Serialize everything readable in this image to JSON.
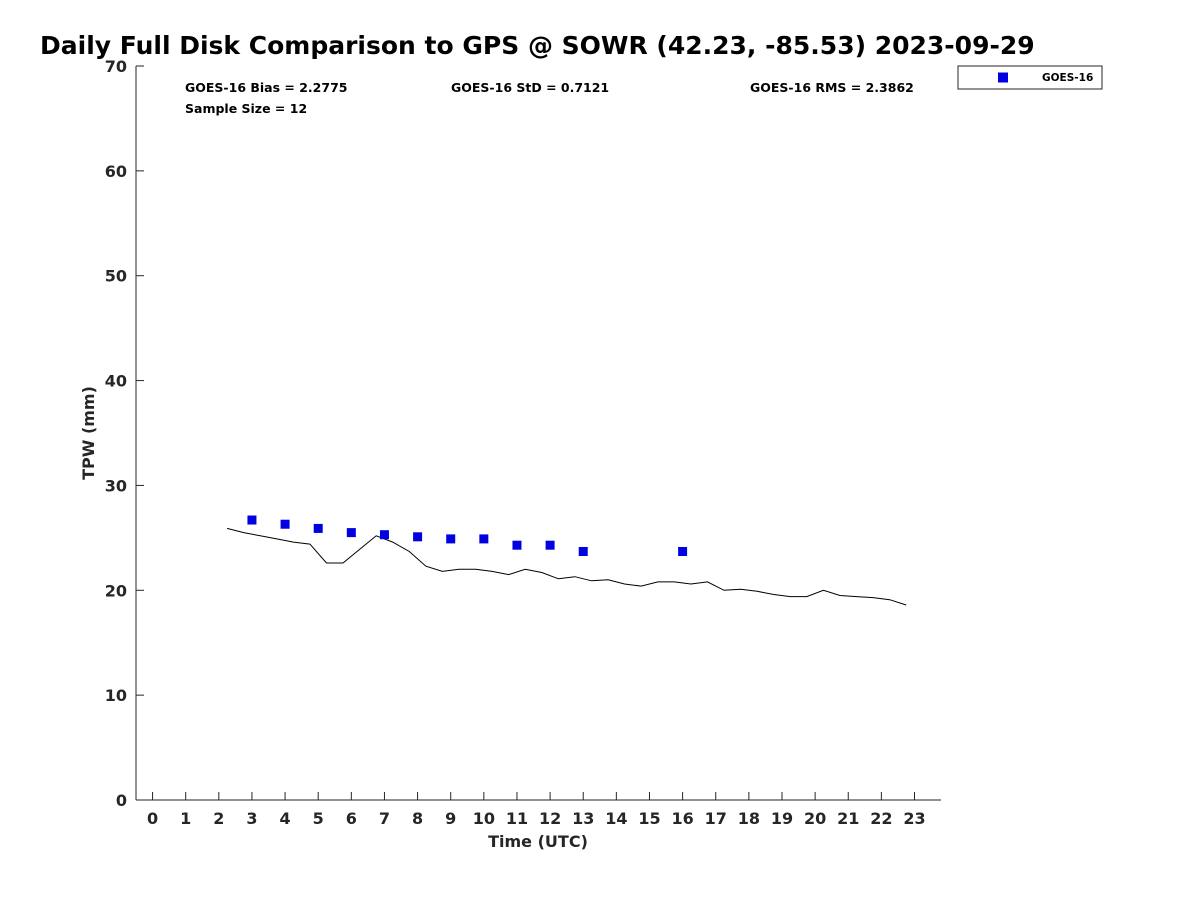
{
  "chart_data": {
    "type": "scatter",
    "title": "Daily Full Disk Comparison to GPS @ SOWR (42.23, -85.53) 2023-09-29",
    "xlabel": "Time (UTC)",
    "ylabel": "TPW (mm)",
    "xlim": [
      -0.5,
      23.8
    ],
    "ylim": [
      0,
      70
    ],
    "x_ticks": [
      "0",
      "1",
      "2",
      "3",
      "4",
      "5",
      "6",
      "7",
      "8",
      "9",
      "10",
      "11",
      "12",
      "13",
      "14",
      "15",
      "16",
      "17",
      "18",
      "19",
      "20",
      "21",
      "22",
      "23"
    ],
    "y_ticks": [
      "0",
      "10",
      "20",
      "30",
      "40",
      "50",
      "60",
      "70"
    ],
    "grid": false,
    "legend_position": "top-right",
    "stats": {
      "bias": "GOES-16 Bias = 2.2775",
      "std": "GOES-16 StD = 0.7121",
      "rms": "GOES-16 RMS = 2.3862",
      "sample_size": "Sample Size = 12"
    },
    "series": [
      {
        "name": "GOES-16",
        "kind": "scatter",
        "marker": "square",
        "color": "#0000e0",
        "x": [
          3,
          4,
          5,
          6,
          7,
          8,
          9,
          10,
          11,
          12,
          13,
          16
        ],
        "y": [
          26.7,
          26.3,
          25.9,
          25.5,
          25.3,
          25.1,
          24.9,
          24.9,
          24.3,
          24.3,
          23.7,
          23.7
        ]
      },
      {
        "kind": "line",
        "color": "#000000",
        "x": [
          2.25,
          2.75,
          3.25,
          3.75,
          4.25,
          4.75,
          5.25,
          5.75,
          6.25,
          6.75,
          7.25,
          7.75,
          8.25,
          8.75,
          9.25,
          9.75,
          10.25,
          10.75,
          11.25,
          11.75,
          12.25,
          12.75,
          13.25,
          13.75,
          14.25,
          14.75,
          15.25,
          15.75,
          16.25,
          16.75,
          17.25,
          17.75,
          18.25,
          18.75,
          19.25,
          19.75,
          20.25,
          20.75,
          21.25,
          21.75,
          22.25,
          22.75
        ],
        "y": [
          25.9,
          25.5,
          25.2,
          24.9,
          24.6,
          24.4,
          22.6,
          22.6,
          23.9,
          25.2,
          24.6,
          23.7,
          22.3,
          21.8,
          22.0,
          22.0,
          21.8,
          21.5,
          22.0,
          21.7,
          21.1,
          21.3,
          20.9,
          21.0,
          20.6,
          20.4,
          20.8,
          20.8,
          20.6,
          20.8,
          20.0,
          20.1,
          19.9,
          19.6,
          19.4,
          19.4,
          20.0,
          19.5,
          19.4,
          19.3,
          19.1,
          18.6
        ]
      }
    ]
  }
}
